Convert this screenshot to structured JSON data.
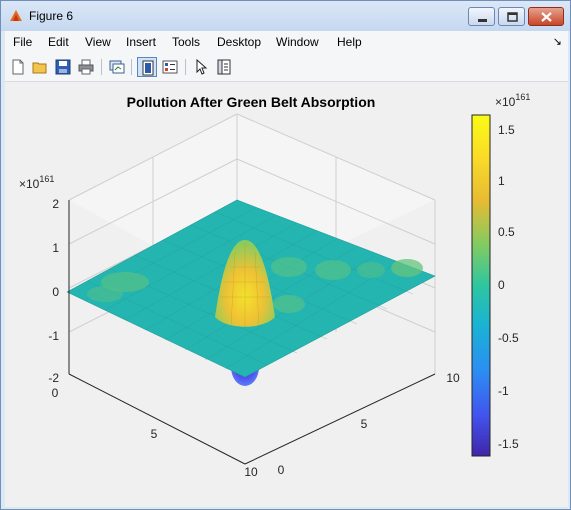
{
  "window": {
    "title": "Figure 6"
  },
  "menu": {
    "items": [
      "File",
      "Edit",
      "View",
      "Insert",
      "Tools",
      "Desktop",
      "Window",
      "Help"
    ]
  },
  "toolbar": {
    "icons": [
      "new-figure-icon",
      "open-file-icon",
      "save-icon",
      "print-icon",
      "link-plot-icon",
      "dock-figure-icon",
      "insert-colorbar-icon",
      "edit-plot-icon",
      "property-inspector-icon"
    ]
  },
  "colors": {
    "surface": "#25b5b0",
    "peak": "#f5d724",
    "trough": "#4a3de0",
    "colorbar": [
      "#3e26a8",
      "#4254ee",
      "#2b8ef3",
      "#19b2d4",
      "#2ec6a0",
      "#82cb61",
      "#e8bb32",
      "#fadc27",
      "#f9fb15"
    ]
  },
  "chart_data": {
    "type": "surface",
    "title": "Pollution After Green Belt Absorption",
    "z_exponent_label": "×10",
    "z_exponent": "161",
    "x_ticks": [
      "0",
      "5",
      "10"
    ],
    "y_ticks": [
      "0",
      "5",
      "10"
    ],
    "z_ticks": [
      "-2",
      "-1",
      "0",
      "1",
      "2"
    ],
    "zlim": [
      -2,
      2
    ],
    "xlim": [
      0,
      10
    ],
    "ylim": [
      0,
      10
    ],
    "colorbar": {
      "exponent_label": "×10",
      "exponent": "161",
      "ticks": [
        "1.5",
        "1",
        "0.5",
        "0",
        "-0.5",
        "-1",
        "-1.5"
      ],
      "range": [
        -1.65,
        1.65
      ]
    },
    "features": [
      {
        "kind": "peak",
        "x": 5,
        "y": 5,
        "z": 1.6
      },
      {
        "kind": "trough",
        "x": 5,
        "y": 5,
        "z": -1.6
      },
      {
        "kind": "bump",
        "x": 2,
        "y": 8,
        "z": 0.25
      },
      {
        "kind": "bump",
        "x": 8,
        "y": 2,
        "z": 0.25
      }
    ]
  }
}
